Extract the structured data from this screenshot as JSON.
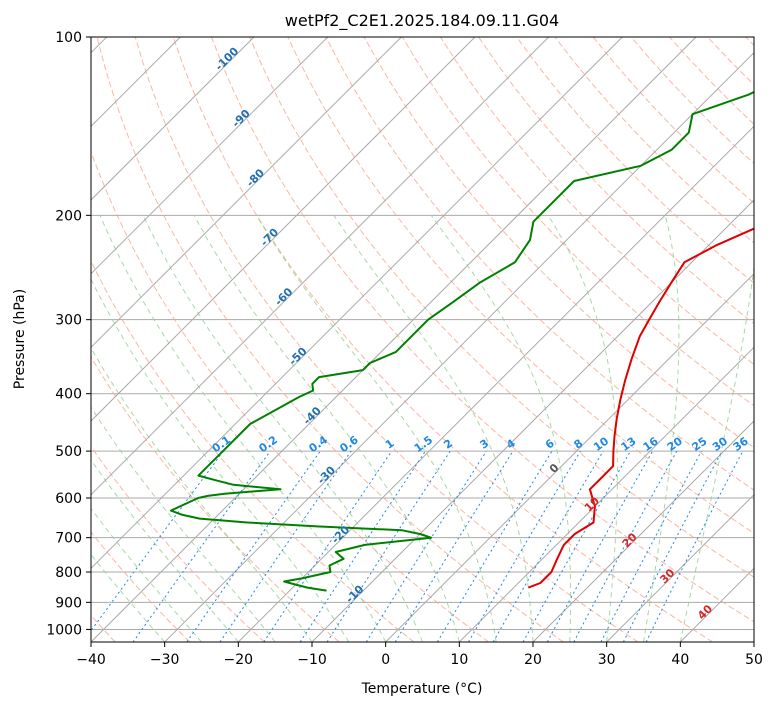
{
  "chart_data": {
    "type": "skew-t",
    "title": "wetPf2_C2E1.2025.184.09.11.G04",
    "xlabel": "Temperature (°C)",
    "ylabel": "Pressure (hPa)",
    "xlim": [
      -40,
      50
    ],
    "ylim": [
      1050,
      100
    ],
    "y_scale": "log",
    "grid": true,
    "x_ticks": [
      -40,
      -30,
      -20,
      -10,
      0,
      10,
      20,
      30,
      40,
      50
    ],
    "y_ticks": [
      100,
      200,
      300,
      400,
      500,
      600,
      700,
      800,
      900,
      1000
    ],
    "temperature_profile": {
      "color": "#e00000",
      "pressure": [
        850,
        835,
        800,
        760,
        720,
        690,
        660,
        620,
        580,
        555,
        530,
        500,
        470,
        440,
        410,
        380,
        350,
        320,
        300,
        280,
        260,
        240,
        225,
        210,
        195,
        180,
        165,
        150,
        140,
        125,
        115,
        100
      ],
      "temp": [
        12,
        13,
        13,
        12,
        11,
        11,
        12,
        10,
        7,
        7,
        7,
        5,
        3,
        1,
        -1,
        -3,
        -5,
        -7,
        -8,
        -9,
        -10,
        -11,
        -9,
        -6,
        -3,
        1,
        5,
        12,
        16,
        20,
        21,
        26
      ]
    },
    "dewpoint_profile": {
      "color": "#008000",
      "pressure": [
        860,
        850,
        840,
        830,
        820,
        800,
        780,
        760,
        740,
        720,
        700,
        690,
        680,
        670,
        660,
        650,
        640,
        630,
        600,
        595,
        590,
        580,
        570,
        560,
        550,
        500,
        450,
        405,
        395,
        385,
        375,
        365,
        355,
        340,
        320,
        300,
        280,
        260,
        240,
        220,
        205,
        195,
        185,
        175,
        165,
        155,
        145,
        135,
        125,
        115,
        100
      ],
      "dewpoint": [
        -15,
        -18,
        -20,
        -22,
        -20,
        -17,
        -18,
        -17,
        -19,
        -16,
        -8,
        -10,
        -13,
        -25,
        -35,
        -42,
        -45,
        -47,
        -45,
        -44,
        -42,
        -35,
        -42,
        -45,
        -48,
        -48,
        -48,
        -45,
        -44,
        -45,
        -45,
        -40,
        -40,
        -38,
        -38,
        -38,
        -37,
        -36,
        -34,
        -35,
        -37,
        -37,
        -37,
        -37,
        -30,
        -28,
        -28,
        -30,
        -25,
        -22,
        -18
      ]
    },
    "legend": [
      {
        "label": "0.1"
      },
      {
        "label": "0.2"
      },
      {
        "label": "0.4"
      },
      {
        "label": "0.6"
      },
      {
        "label": "1"
      },
      {
        "label": "1.5"
      },
      {
        "label": "2"
      },
      {
        "label": "3"
      },
      {
        "label": "4"
      },
      {
        "label": "6"
      },
      {
        "label": "8"
      },
      {
        "label": "10"
      },
      {
        "label": "13"
      },
      {
        "label": "16"
      },
      {
        "label": "20"
      },
      {
        "label": "25"
      },
      {
        "label": "30"
      },
      {
        "label": "36"
      }
    ],
    "mixing_ratio_labels": [
      "0.1",
      "0.2",
      "0.4",
      "0.6",
      "1",
      "1.5",
      "2",
      "3",
      "4",
      "6",
      "8",
      "10",
      "13",
      "16",
      "20",
      "25",
      "30",
      "36"
    ],
    "mixing_ratio_values": [
      0.1,
      0.2,
      0.4,
      0.6,
      1,
      1.5,
      2,
      3,
      4,
      6,
      8,
      10,
      13,
      16,
      20,
      25,
      30,
      36
    ],
    "isotherm_labels": [
      "-100",
      "-90",
      "-80",
      "-70",
      "-60",
      "-50",
      "-40",
      "-30",
      "-20",
      "-10"
    ],
    "isotherm_values": [
      -100,
      -90,
      -80,
      -70,
      -60,
      -50,
      -40,
      -30,
      -20,
      -10
    ],
    "warm_isotherm_labels": [
      "0",
      "10",
      "20",
      "30",
      "40"
    ],
    "warm_isotherm_values": [
      0,
      10,
      20,
      30,
      40
    ],
    "colors": {
      "isotherm_label": "#1f6fb2",
      "mixing_ratio": "#1e88e5",
      "warm_label_red": "#d62728",
      "zero_label": "#555555",
      "dry_adiabat": "#f7a58a",
      "moist_adiabat": "#8fcf8f",
      "skew_isotherm": "#aaaaaa",
      "gridline": "#aaaaaa"
    }
  }
}
